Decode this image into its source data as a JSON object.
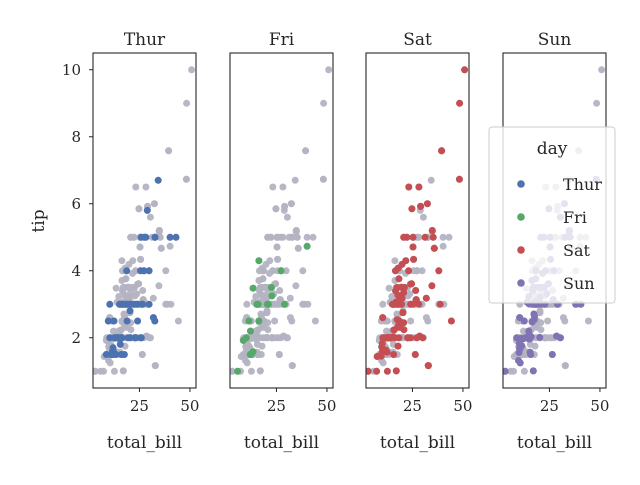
{
  "chart_data": {
    "type": "scatter",
    "kind": "faceted scatter (one panel per day, all points shown in gray behind the highlighted day)",
    "xlabel": "total_bill",
    "ylabel": "tip",
    "xlim": [
      2,
      53
    ],
    "ylim": [
      0.5,
      10.5
    ],
    "x_ticks": [
      25,
      50
    ],
    "y_ticks": [
      2,
      4,
      6,
      8,
      10
    ],
    "background_color": "#b3b3c2",
    "legend": {
      "title": "day",
      "placement": "right",
      "entries": [
        "Thur",
        "Fri",
        "Sat",
        "Sun"
      ]
    },
    "series": [
      {
        "name": "Thur",
        "color": "#4c72b0",
        "points": [
          [
            27.2,
            4
          ],
          [
            22.8,
            2
          ],
          [
            18.7,
            4
          ],
          [
            14.5,
            2
          ],
          [
            13.0,
            2
          ],
          [
            8.6,
            1.5
          ],
          [
            10.3,
            2
          ],
          [
            14.8,
            2
          ],
          [
            18.9,
            2.5
          ],
          [
            19.2,
            3
          ],
          [
            25.5,
            4
          ],
          [
            24.0,
            3
          ],
          [
            29.8,
            4
          ],
          [
            12.5,
            2
          ],
          [
            22.5,
            3
          ],
          [
            25.9,
            2
          ],
          [
            32.7,
            5
          ],
          [
            19.4,
            2
          ],
          [
            27.4,
            5
          ],
          [
            13.4,
            1.5
          ],
          [
            16.0,
            1.5
          ],
          [
            10.8,
            1.5
          ],
          [
            12.0,
            1.6
          ],
          [
            26.1,
            3
          ],
          [
            13.8,
            2
          ],
          [
            16.3,
            3
          ],
          [
            13.8,
            2
          ],
          [
            11.9,
            1.7
          ],
          [
            28.2,
            5
          ],
          [
            32.7,
            5
          ],
          [
            17.5,
            1.5
          ],
          [
            15.7,
            2
          ],
          [
            20.5,
            3
          ],
          [
            14.2,
            2
          ],
          [
            16.4,
            2
          ],
          [
            29.8,
            3
          ],
          [
            10.3,
            3
          ],
          [
            32.6,
            2.5
          ],
          [
            20.0,
            3
          ],
          [
            34.3,
            6.7
          ],
          [
            25.8,
            5
          ],
          [
            43.1,
            5
          ],
          [
            24.1,
            2.5
          ],
          [
            40.2,
            5
          ],
          [
            11.7,
            1.6
          ],
          [
            12.3,
            2.5
          ],
          [
            13.0,
            2
          ],
          [
            16.2,
            2
          ],
          [
            17.9,
            3
          ],
          [
            20.5,
            2
          ],
          [
            18.4,
            3
          ],
          [
            15.5,
            1.8
          ],
          [
            11.4,
            1.5
          ],
          [
            15.8,
            2
          ],
          [
            16.9,
            3
          ],
          [
            22.4,
            3
          ],
          [
            23.3,
            2
          ],
          [
            22.6,
            2
          ],
          [
            12.0,
            1.5
          ],
          [
            25.6,
            2
          ],
          [
            15.5,
            3
          ],
          [
            31.9,
            2.6
          ],
          [
            28.9,
            5.8
          ],
          [
            20.3,
            2.8
          ],
          [
            24.1,
            3
          ],
          [
            20.7,
            3
          ],
          [
            15.1,
            3
          ],
          [
            9.6,
            2.5
          ],
          [
            26.6,
            3
          ]
        ]
      },
      {
        "name": "Fri",
        "color": "#55a868",
        "points": [
          [
            28.97,
            3
          ],
          [
            22.49,
            3.5
          ],
          [
            5.75,
            1
          ],
          [
            16.32,
            4.3
          ],
          [
            22.75,
            3.25
          ],
          [
            40.17,
            4.73
          ],
          [
            27.28,
            4
          ],
          [
            12.03,
            1.5
          ],
          [
            21.01,
            3
          ],
          [
            12.46,
            1.5
          ],
          [
            11.35,
            2.5
          ],
          [
            15.38,
            3
          ],
          [
            12.16,
            2.2
          ],
          [
            13.42,
            3.48
          ],
          [
            8.58,
            1.92
          ],
          [
            15.98,
            3
          ],
          [
            13.42,
            1.58
          ],
          [
            16.27,
            2.5
          ],
          [
            10.09,
            2
          ],
          [
            20.45,
            3
          ]
        ]
      },
      {
        "name": "Sat",
        "color": "#c44e52",
        "points": [
          [
            50.81,
            10
          ],
          [
            48.33,
            9
          ],
          [
            48.27,
            6.73
          ],
          [
            39.42,
            7.58
          ],
          [
            3.07,
            1
          ],
          [
            44.3,
            2.5
          ],
          [
            7.25,
            1
          ],
          [
            35.83,
            4.67
          ],
          [
            30.06,
            2
          ],
          [
            32.83,
            1.17
          ],
          [
            38.73,
            3
          ],
          [
            20.69,
            5
          ],
          [
            31.85,
            3.18
          ],
          [
            28.17,
            6.5
          ],
          [
            24.71,
            5.85
          ],
          [
            34.63,
            3.55
          ],
          [
            26.88,
            3.12
          ],
          [
            20.29,
            2.75
          ],
          [
            15.69,
            3
          ],
          [
            26.41,
            1.5
          ],
          [
            19.81,
            4.19
          ],
          [
            18.04,
            3
          ],
          [
            25.28,
            5
          ],
          [
            29.03,
            5.92
          ],
          [
            22.67,
            2
          ],
          [
            17.31,
            3.5
          ],
          [
            28.15,
            3
          ],
          [
            24.59,
            3.61
          ],
          [
            23.17,
            6.5
          ],
          [
            20.76,
            2.24
          ],
          [
            21.01,
            3.5
          ],
          [
            16.99,
            1.01
          ],
          [
            10.34,
            1.66
          ],
          [
            20.65,
            3.35
          ],
          [
            17.92,
            4.08
          ],
          [
            20.29,
            2.75
          ],
          [
            15.77,
            2.23
          ],
          [
            39.42,
            7.58
          ],
          [
            19.82,
            3.18
          ],
          [
            17.81,
            2.34
          ],
          [
            13.37,
            2
          ],
          [
            12.69,
            2
          ],
          [
            21.7,
            4.3
          ],
          [
            19.65,
            3
          ],
          [
            9.55,
            1.45
          ],
          [
            18.35,
            2.5
          ],
          [
            15.06,
            3
          ],
          [
            20.69,
            2.45
          ],
          [
            17.78,
            3.27
          ],
          [
            24.06,
            3.6
          ],
          [
            16.31,
            2
          ],
          [
            16.93,
            3.07
          ],
          [
            18.69,
            2.31
          ],
          [
            31.27,
            5
          ],
          [
            16.04,
            2.24
          ],
          [
            18.29,
            3.76
          ],
          [
            22.23,
            5
          ],
          [
            32.4,
            6
          ],
          [
            28.55,
            2.05
          ],
          [
            18.78,
            3
          ],
          [
            25.21,
            3
          ],
          [
            14.48,
            2
          ],
          [
            16.58,
            4
          ],
          [
            7.56,
            1.44
          ],
          [
            10.33,
            2
          ],
          [
            10.29,
            2.6
          ],
          [
            34.81,
            5.2
          ],
          [
            9.94,
            1.56
          ],
          [
            25.56,
            4.34
          ],
          [
            19.49,
            3.51
          ],
          [
            26.86,
            3.14
          ],
          [
            25.29,
            4.71
          ],
          [
            14.15,
            2
          ],
          [
            35.26,
            5
          ],
          [
            15.48,
            2.02
          ],
          [
            16.66,
            3.4
          ],
          [
            12.43,
            1.57
          ],
          [
            17.46,
            2.54
          ],
          [
            11.38,
            2
          ],
          [
            18.29,
            2
          ],
          [
            15.69,
            1.5
          ],
          [
            18.26,
            3.25
          ],
          [
            9.78,
            1.73
          ],
          [
            13.51,
            2
          ],
          [
            26.59,
            3.41
          ],
          [
            38.07,
            4
          ],
          [
            23.1,
            4
          ],
          [
            12.74,
            2.01
          ],
          [
            17.07,
            3
          ],
          [
            11.87,
            1.63
          ],
          [
            13.81,
            2
          ],
          [
            15.53,
            3
          ],
          [
            10.07,
            1.83
          ],
          [
            12.6,
            1
          ],
          [
            32.83,
            1.17
          ],
          [
            35.83,
            4.67
          ],
          [
            29.03,
            5.92
          ],
          [
            27.18,
            2
          ],
          [
            22.67,
            2
          ],
          [
            17.82,
            1.75
          ],
          [
            10.63,
            2
          ],
          [
            24.01,
            2
          ],
          [
            24.06,
            3
          ]
        ]
      },
      {
        "name": "Sun",
        "color": "#8172b3",
        "points": [
          [
            16.99,
            1.01
          ],
          [
            10.34,
            1.66
          ],
          [
            21.01,
            3.5
          ],
          [
            23.68,
            3.31
          ],
          [
            24.59,
            3.61
          ],
          [
            25.29,
            4.71
          ],
          [
            8.77,
            2
          ],
          [
            26.88,
            3.12
          ],
          [
            15.04,
            1.96
          ],
          [
            14.78,
            3.23
          ],
          [
            10.27,
            1.71
          ],
          [
            35.26,
            5
          ],
          [
            15.42,
            1.57
          ],
          [
            18.43,
            3
          ],
          [
            14.83,
            3.02
          ],
          [
            21.58,
            3.92
          ],
          [
            10.33,
            1.67
          ],
          [
            16.29,
            3.71
          ],
          [
            16.97,
            3.5
          ],
          [
            17.46,
            2.54
          ],
          [
            13.94,
            3.06
          ],
          [
            9.68,
            1.32
          ],
          [
            30.4,
            5.6
          ],
          [
            18.29,
            3
          ],
          [
            22.23,
            5
          ],
          [
            32.4,
            6
          ],
          [
            28.55,
            2.05
          ],
          [
            18.04,
            3
          ],
          [
            12.54,
            2.5
          ],
          [
            10.29,
            2.6
          ],
          [
            34.81,
            5.2
          ],
          [
            9.94,
            1.56
          ],
          [
            25.56,
            4.34
          ],
          [
            19.49,
            3.51
          ],
          [
            38.01,
            3
          ],
          [
            26.41,
            1.5
          ],
          [
            11.24,
            1.76
          ],
          [
            48.27,
            6.73
          ],
          [
            20.29,
            3.21
          ],
          [
            13.81,
            2
          ],
          [
            11.02,
            1.98
          ],
          [
            18.29,
            3.76
          ],
          [
            17.59,
            2.64
          ],
          [
            20.08,
            3.15
          ],
          [
            16.45,
            2.47
          ],
          [
            3.07,
            1
          ],
          [
            20.23,
            2.01
          ],
          [
            15.01,
            2.09
          ],
          [
            12.02,
            1.97
          ],
          [
            17.07,
            3
          ],
          [
            26.86,
            3.14
          ],
          [
            25.28,
            5
          ],
          [
            14.73,
            2.2
          ],
          [
            10.51,
            1.25
          ],
          [
            17.92,
            3.08
          ],
          [
            27.2,
            4
          ],
          [
            22.76,
            3
          ],
          [
            17.29,
            2.71
          ],
          [
            19.44,
            3
          ],
          [
            16.66,
            3.4
          ],
          [
            10.07,
            1.83
          ],
          [
            32.68,
            5
          ],
          [
            15.98,
            2.03
          ],
          [
            34.83,
            5.17
          ],
          [
            13.03,
            2
          ],
          [
            18.28,
            4
          ],
          [
            24.71,
            5.85
          ],
          [
            21.16,
            3
          ],
          [
            28.97,
            3
          ],
          [
            22.49,
            3.5
          ],
          [
            40.55,
            3
          ],
          [
            20.69,
            5
          ],
          [
            20.9,
            3.5
          ],
          [
            30.46,
            2
          ],
          [
            18.15,
            3.5
          ],
          [
            23.1,
            4
          ],
          [
            15.69,
            1.5
          ]
        ]
      }
    ]
  }
}
